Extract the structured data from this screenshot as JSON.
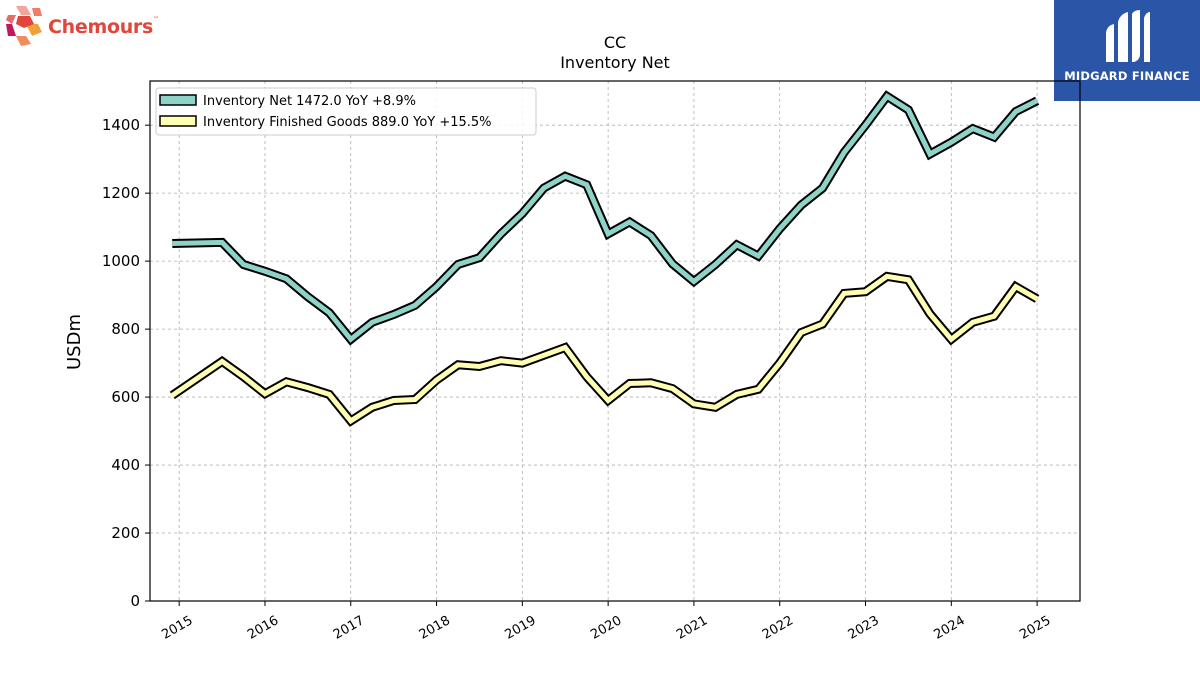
{
  "company_logo": {
    "name": "Chemours",
    "trademark": "™",
    "colors": [
      "#e0463c",
      "#f0a23a",
      "#c2185b"
    ]
  },
  "brand": {
    "name": "MIDGARD FINANCE",
    "color": "#2b55a7"
  },
  "chart_data": {
    "type": "line",
    "title": "CC",
    "subtitle": "Inventory Net",
    "xlabel": "",
    "ylabel": "USDm",
    "ylim": [
      0,
      1530
    ],
    "xlim": [
      2014.66,
      2025.5
    ],
    "yticks": [
      0,
      200,
      400,
      600,
      800,
      1000,
      1200,
      1400
    ],
    "xticks": [
      2015,
      2016,
      2017,
      2018,
      2019,
      2020,
      2021,
      2022,
      2023,
      2024,
      2025
    ],
    "grid": true,
    "legend_position": "top-left",
    "x": [
      2014.92,
      2015.5,
      2015.75,
      2016.0,
      2016.25,
      2016.5,
      2016.75,
      2017.0,
      2017.25,
      2017.5,
      2017.75,
      2018.0,
      2018.25,
      2018.5,
      2018.75,
      2019.0,
      2019.25,
      2019.5,
      2019.75,
      2020.0,
      2020.25,
      2020.5,
      2020.75,
      2021.0,
      2021.25,
      2021.5,
      2021.75,
      2022.0,
      2022.25,
      2022.5,
      2022.75,
      2023.0,
      2023.25,
      2023.5,
      2023.75,
      2024.0,
      2024.25,
      2024.5,
      2024.75,
      2025.0
    ],
    "series": [
      {
        "name": "Inventory Net",
        "legend_label": "Inventory Net  1472.0 YoY +8.9%",
        "color": "#8dd3c7",
        "values": [
          1052,
          1055,
          990,
          970,
          948,
          895,
          848,
          770,
          820,
          843,
          870,
          925,
          990,
          1010,
          1080,
          1140,
          1215,
          1250,
          1225,
          1080,
          1115,
          1075,
          992,
          940,
          990,
          1048,
          1015,
          1095,
          1165,
          1215,
          1320,
          1400,
          1485,
          1445,
          1315,
          1350,
          1390,
          1365,
          1440,
          1472
        ]
      },
      {
        "name": "Inventory Finished Goods",
        "legend_label": "Inventory Finished Goods  889.0 YoY +15.5%",
        "color": "#ffffb3",
        "values": [
          605,
          705,
          660,
          610,
          645,
          628,
          608,
          530,
          570,
          590,
          593,
          650,
          695,
          690,
          707,
          700,
          723,
          746,
          660,
          590,
          640,
          642,
          625,
          580,
          570,
          608,
          623,
          700,
          790,
          815,
          905,
          910,
          955,
          945,
          845,
          770,
          820,
          838,
          925,
          889
        ]
      }
    ]
  }
}
